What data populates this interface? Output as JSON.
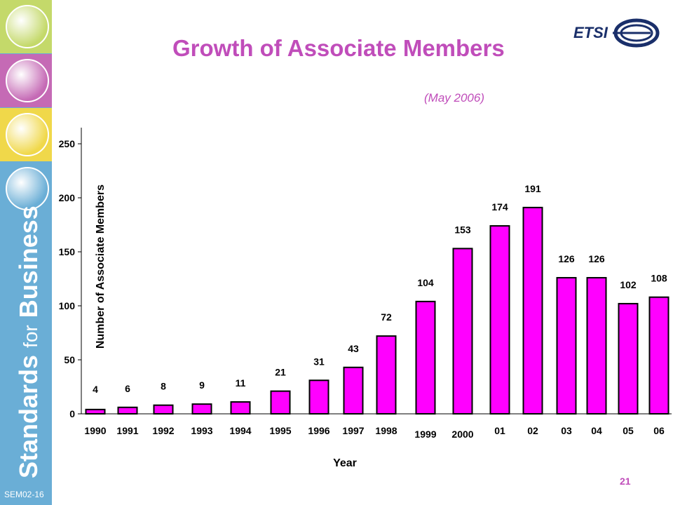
{
  "title": "Growth of Associate Members",
  "subtitle": "(May 2006)",
  "logo_text": "ETSI",
  "page_number": "21",
  "slide_code": "SEM02-16",
  "sidebar": {
    "tagline_1": "Standards",
    "tagline_2": "for",
    "tagline_3": "Business",
    "tile_colors": [
      "#c4d96a",
      "#c56ab5",
      "#f0d84a",
      "#6aaed6"
    ]
  },
  "colors": {
    "bar": "#ff00ff",
    "accent": "#c04dba"
  },
  "chart_data": {
    "type": "bar",
    "categories": [
      "1990",
      "1991",
      "1992",
      "1993",
      "1994",
      "1995",
      "1996",
      "1997",
      "1998",
      "1999",
      "2000",
      "01",
      "02",
      "03",
      "04",
      "05",
      "06"
    ],
    "values": [
      4,
      6,
      8,
      9,
      11,
      21,
      31,
      43,
      72,
      104,
      153,
      174,
      191,
      126,
      126,
      102,
      108
    ],
    "value_labels": [
      "4",
      "6",
      "8",
      "9",
      "11",
      "21",
      "31",
      "43",
      "72",
      "104",
      "153",
      "174",
      "191",
      "126",
      "126",
      "102",
      "108"
    ],
    "title": "",
    "xlabel": "Year",
    "ylabel": "Number of Associate Members",
    "ylim": [
      0,
      250
    ],
    "yticks": [
      0,
      50,
      100,
      150,
      200,
      250
    ],
    "grid": false,
    "legend": "none"
  }
}
